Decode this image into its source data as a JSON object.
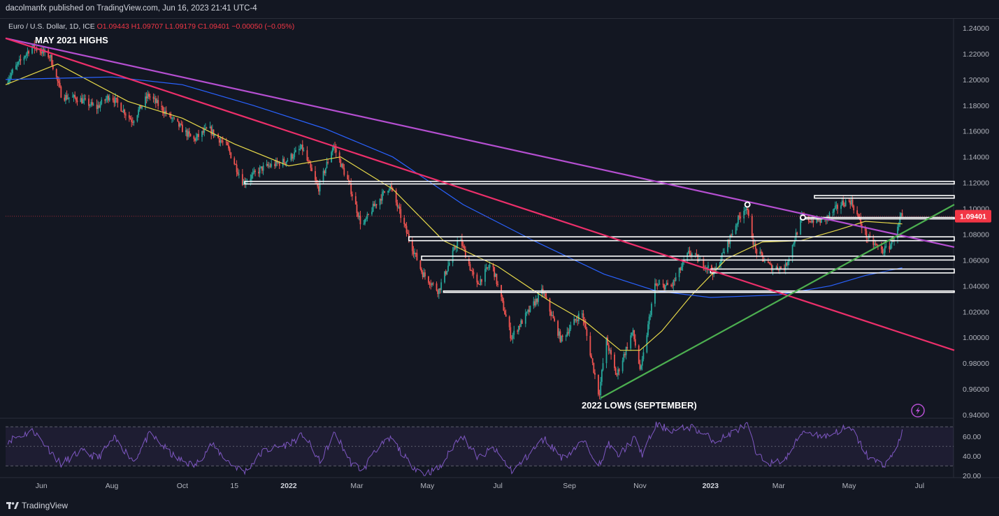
{
  "header": {
    "publisher": "dacolmanfx published on TradingView.com, Jun 16, 2023 21:41 UTC-4"
  },
  "legend": {
    "symbol": "Euro / U.S. Dollar, 1D, ICE",
    "open": "O1.09443",
    "high": "H1.09707",
    "low": "L1.09179",
    "close": "C1.09401",
    "change": "−0.00050 (−0.05%)"
  },
  "annotations": {
    "top_left": "MAY 2021 HIGHS",
    "bottom": "2022 LOWS (SEPTEMBER)"
  },
  "price_tag": "1.09401",
  "footer": {
    "brand": "TradingView"
  },
  "colors": {
    "background": "#131722",
    "up_candle": "#26a69a",
    "down_candle": "#ef5350",
    "ma_yellow": "#e6d84a",
    "ma_blue": "#2962ff",
    "trend_magenta": "#ec2f6a",
    "trend_purple": "#b54fd1",
    "trend_green": "#4caf50",
    "rsi_line": "#7e57c2",
    "price_tag": "#f23645"
  },
  "chart_data": {
    "type": "candlestick",
    "symbol": "EUR/USD",
    "timeframe": "1D",
    "price_axis": {
      "labels": [
        "1.24000",
        "1.22000",
        "1.20000",
        "1.18000",
        "1.16000",
        "1.14000",
        "1.12000",
        "1.10000",
        "1.08000",
        "1.06000",
        "1.04000",
        "1.02000",
        "1.00000",
        "0.98000",
        "0.96000",
        "0.94000"
      ],
      "ylim": [
        0.94,
        1.24
      ]
    },
    "time_axis": {
      "labels": [
        "Jun",
        "Aug",
        "Oct",
        "15",
        "2022",
        "Mar",
        "May",
        "Jul",
        "Sep",
        "Nov",
        "2023",
        "Mar",
        "May",
        "Jul"
      ],
      "bold": [
        "2022",
        "2023"
      ],
      "range": [
        "2021-05-01",
        "2023-07-31"
      ]
    },
    "price_path": [
      [
        "2021-05-01",
        1.197
      ],
      [
        "2021-05-25",
        1.226
      ],
      [
        "2021-06-10",
        1.218
      ],
      [
        "2021-06-20",
        1.187
      ],
      [
        "2021-07-05",
        1.185
      ],
      [
        "2021-07-20",
        1.178
      ],
      [
        "2021-08-01",
        1.188
      ],
      [
        "2021-08-20",
        1.168
      ],
      [
        "2021-09-03",
        1.188
      ],
      [
        "2021-09-25",
        1.168
      ],
      [
        "2021-10-12",
        1.153
      ],
      [
        "2021-10-25",
        1.162
      ],
      [
        "2021-11-10",
        1.148
      ],
      [
        "2021-11-24",
        1.12
      ],
      [
        "2021-12-10",
        1.131
      ],
      [
        "2021-12-31",
        1.137
      ],
      [
        "2022-01-14",
        1.147
      ],
      [
        "2022-01-28",
        1.115
      ],
      [
        "2022-02-10",
        1.149
      ],
      [
        "2022-02-24",
        1.118
      ],
      [
        "2022-03-07",
        1.085
      ],
      [
        "2022-03-15",
        1.099
      ],
      [
        "2022-03-31",
        1.118
      ],
      [
        "2022-04-15",
        1.08
      ],
      [
        "2022-04-28",
        1.05
      ],
      [
        "2022-05-12",
        1.036
      ],
      [
        "2022-05-30",
        1.078
      ],
      [
        "2022-06-14",
        1.04
      ],
      [
        "2022-06-27",
        1.058
      ],
      [
        "2022-07-14",
        1.0
      ],
      [
        "2022-08-10",
        1.036
      ],
      [
        "2022-08-26",
        0.998
      ],
      [
        "2022-09-13",
        1.02
      ],
      [
        "2022-09-28",
        0.955
      ],
      [
        "2022-10-04",
        0.999
      ],
      [
        "2022-10-13",
        0.97
      ],
      [
        "2022-10-27",
        1.005
      ],
      [
        "2022-11-03",
        0.973
      ],
      [
        "2022-11-15",
        1.04
      ],
      [
        "2022-11-30",
        1.04
      ],
      [
        "2022-12-15",
        1.066
      ],
      [
        "2023-01-06",
        1.05
      ],
      [
        "2023-01-26",
        1.091
      ],
      [
        "2023-02-02",
        1.102
      ],
      [
        "2023-02-10",
        1.068
      ],
      [
        "2023-02-24",
        1.054
      ],
      [
        "2023-03-08",
        1.054
      ],
      [
        "2023-03-22",
        1.092
      ],
      [
        "2023-04-10",
        1.09
      ],
      [
        "2023-04-26",
        1.104
      ],
      [
        "2023-05-04",
        1.106
      ],
      [
        "2023-05-18",
        1.077
      ],
      [
        "2023-05-31",
        1.067
      ],
      [
        "2023-06-06",
        1.07
      ],
      [
        "2023-06-14",
        1.085
      ],
      [
        "2023-06-16",
        1.094
      ]
    ],
    "moving_averages": [
      {
        "color": "#e6d84a",
        "points": [
          [
            "2021-05-01",
            1.196
          ],
          [
            "2021-06-15",
            1.212
          ],
          [
            "2021-08-15",
            1.183
          ],
          [
            "2021-10-01",
            1.17
          ],
          [
            "2021-11-15",
            1.15
          ],
          [
            "2022-01-01",
            1.133
          ],
          [
            "2022-02-15",
            1.14
          ],
          [
            "2022-04-01",
            1.115
          ],
          [
            "2022-05-15",
            1.075
          ],
          [
            "2022-07-01",
            1.055
          ],
          [
            "2022-08-15",
            1.028
          ],
          [
            "2022-09-15",
            1.012
          ],
          [
            "2022-10-15",
            0.99
          ],
          [
            "2022-11-01",
            0.99
          ],
          [
            "2022-11-20",
            1.005
          ],
          [
            "2022-12-15",
            1.032
          ],
          [
            "2023-01-15",
            1.061
          ],
          [
            "2023-02-15",
            1.074
          ],
          [
            "2023-03-20",
            1.075
          ],
          [
            "2023-04-20",
            1.083
          ],
          [
            "2023-05-15",
            1.09
          ],
          [
            "2023-06-16",
            1.088
          ]
        ]
      },
      {
        "color": "#2962ff",
        "points": [
          [
            "2021-05-01",
            1.2
          ],
          [
            "2021-08-01",
            1.202
          ],
          [
            "2021-10-01",
            1.196
          ],
          [
            "2021-12-01",
            1.18
          ],
          [
            "2022-02-01",
            1.162
          ],
          [
            "2022-04-01",
            1.14
          ],
          [
            "2022-06-01",
            1.103
          ],
          [
            "2022-08-01",
            1.075
          ],
          [
            "2022-10-01",
            1.049
          ],
          [
            "2022-11-15",
            1.036
          ],
          [
            "2023-01-01",
            1.031
          ],
          [
            "2023-03-01",
            1.033
          ],
          [
            "2023-04-15",
            1.04
          ],
          [
            "2023-05-15",
            1.048
          ],
          [
            "2023-06-16",
            1.054
          ]
        ]
      }
    ],
    "trendlines": [
      {
        "color": "#b54fd1",
        "from": [
          "2021-05-01",
          1.232
        ],
        "to": [
          "2023-07-31",
          1.07
        ]
      },
      {
        "color": "#ec2f6a",
        "from": [
          "2021-05-01",
          1.232
        ],
        "to": [
          "2023-07-31",
          0.99
        ]
      },
      {
        "color": "#4caf50",
        "from": [
          "2022-09-28",
          0.953
        ],
        "to": [
          "2023-07-31",
          1.103
        ]
      }
    ],
    "horizontal_zones": [
      {
        "from": "2021-11-24",
        "to": "2023-07-31",
        "top": 1.121,
        "bottom": 1.119
      },
      {
        "from": "2023-04-01",
        "to": "2023-07-31",
        "top": 1.11,
        "bottom": 1.108
      },
      {
        "from": "2023-03-20",
        "to": "2023-07-31",
        "top": 1.093,
        "bottom": 1.092
      },
      {
        "from": "2022-04-15",
        "to": "2023-07-31",
        "top": 1.078,
        "bottom": 1.075
      },
      {
        "from": "2022-04-26",
        "to": "2023-07-31",
        "top": 1.063,
        "bottom": 1.06
      },
      {
        "from": "2023-01-01",
        "to": "2023-07-31",
        "top": 1.053,
        "bottom": 1.05
      },
      {
        "from": "2022-05-15",
        "to": "2023-07-31",
        "top": 1.036,
        "bottom": 1.035
      }
    ],
    "markers": [
      {
        "date": "2023-02-02",
        "price": 1.103
      },
      {
        "date": "2023-03-22",
        "price": 1.093
      }
    ],
    "last_price": 1.09401,
    "rsi": {
      "labels": [
        "60.00",
        "40.00",
        "20.00"
      ],
      "levels": [
        70,
        50,
        30
      ],
      "ylim": [
        18,
        78
      ],
      "path": [
        [
          "2021-05-01",
          55
        ],
        [
          "2021-05-25",
          66
        ],
        [
          "2021-06-18",
          32
        ],
        [
          "2021-07-05",
          45
        ],
        [
          "2021-07-20",
          38
        ],
        [
          "2021-08-03",
          58
        ],
        [
          "2021-08-20",
          35
        ],
        [
          "2021-09-03",
          63
        ],
        [
          "2021-09-25",
          38
        ],
        [
          "2021-10-12",
          30
        ],
        [
          "2021-10-26",
          52
        ],
        [
          "2021-11-12",
          32
        ],
        [
          "2021-11-24",
          24
        ],
        [
          "2021-12-10",
          45
        ],
        [
          "2021-12-31",
          52
        ],
        [
          "2022-01-14",
          62
        ],
        [
          "2022-01-28",
          34
        ],
        [
          "2022-02-10",
          64
        ],
        [
          "2022-02-24",
          33
        ],
        [
          "2022-03-07",
          25
        ],
        [
          "2022-03-15",
          45
        ],
        [
          "2022-03-31",
          58
        ],
        [
          "2022-04-15",
          33
        ],
        [
          "2022-04-28",
          22
        ],
        [
          "2022-05-12",
          28
        ],
        [
          "2022-05-30",
          63
        ],
        [
          "2022-06-14",
          38
        ],
        [
          "2022-06-27",
          48
        ],
        [
          "2022-07-14",
          24
        ],
        [
          "2022-08-10",
          58
        ],
        [
          "2022-08-26",
          38
        ],
        [
          "2022-09-13",
          55
        ],
        [
          "2022-09-28",
          30
        ],
        [
          "2022-10-04",
          53
        ],
        [
          "2022-10-13",
          40
        ],
        [
          "2022-10-27",
          58
        ],
        [
          "2022-11-03",
          42
        ],
        [
          "2022-11-15",
          72
        ],
        [
          "2022-11-30",
          66
        ],
        [
          "2022-12-15",
          70
        ],
        [
          "2023-01-06",
          55
        ],
        [
          "2023-01-26",
          68
        ],
        [
          "2023-02-02",
          72
        ],
        [
          "2023-02-10",
          40
        ],
        [
          "2023-02-24",
          32
        ],
        [
          "2023-03-08",
          38
        ],
        [
          "2023-03-22",
          66
        ],
        [
          "2023-04-10",
          60
        ],
        [
          "2023-04-26",
          68
        ],
        [
          "2023-05-04",
          66
        ],
        [
          "2023-05-18",
          38
        ],
        [
          "2023-05-31",
          31
        ],
        [
          "2023-06-06",
          38
        ],
        [
          "2023-06-14",
          58
        ],
        [
          "2023-06-16",
          66
        ]
      ]
    }
  }
}
